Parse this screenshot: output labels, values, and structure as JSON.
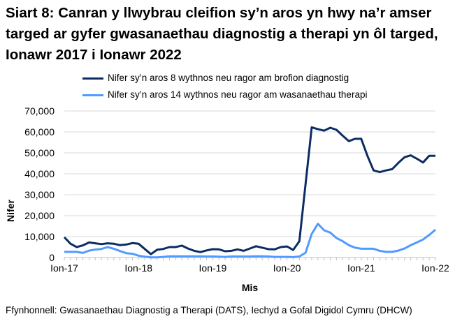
{
  "chart_data": {
    "type": "line",
    "title": "Siart 8: Canran y llwybrau cleifion sy’n aros yn hwy na’r amser targed ar gyfer gwasanaethau diagnostig a therapi yn ôl targed, Ionawr 2017 i Ionawr 2022",
    "xlabel": "Mis",
    "ylabel": "Nifer",
    "ylim": [
      0,
      70000
    ],
    "yticks": [
      "0",
      "10,000",
      "20,000",
      "30,000",
      "40,000",
      "50,000",
      "60,000",
      "70,000"
    ],
    "xtick_labels": [
      "Ion-17",
      "Ion-18",
      "Ion-19",
      "Ion-20",
      "Ion-21",
      "Ion-22"
    ],
    "x": [
      "2017-01",
      "2017-02",
      "2017-03",
      "2017-04",
      "2017-05",
      "2017-06",
      "2017-07",
      "2017-08",
      "2017-09",
      "2017-10",
      "2017-11",
      "2017-12",
      "2018-01",
      "2018-02",
      "2018-03",
      "2018-04",
      "2018-05",
      "2018-06",
      "2018-07",
      "2018-08",
      "2018-09",
      "2018-10",
      "2018-11",
      "2018-12",
      "2019-01",
      "2019-02",
      "2019-03",
      "2019-04",
      "2019-05",
      "2019-06",
      "2019-07",
      "2019-08",
      "2019-09",
      "2019-10",
      "2019-11",
      "2019-12",
      "2020-01",
      "2020-02",
      "2020-03",
      "2020-04",
      "2020-05",
      "2020-06",
      "2020-07",
      "2020-08",
      "2020-09",
      "2020-10",
      "2020-11",
      "2020-12",
      "2021-01",
      "2021-02",
      "2021-03",
      "2021-04",
      "2021-05",
      "2021-06",
      "2021-07",
      "2021-08",
      "2021-09",
      "2021-10",
      "2021-11",
      "2021-12",
      "2022-01"
    ],
    "grid": true,
    "legend_position": "top",
    "series": [
      {
        "name": "Nifer sy’n aros 8 wythnos neu ragor am brofion diagnostig",
        "color": "#0b2d63",
        "values": [
          9700,
          6600,
          5000,
          5800,
          7200,
          6800,
          6400,
          6800,
          6600,
          5900,
          6200,
          6900,
          6600,
          4100,
          1600,
          3700,
          4100,
          5000,
          5000,
          5700,
          4300,
          3200,
          2600,
          3400,
          4000,
          3900,
          3000,
          3200,
          3900,
          3200,
          4300,
          5400,
          4700,
          4000,
          3900,
          5000,
          5300,
          3600,
          7800,
          35000,
          62200,
          61300,
          60600,
          62000,
          61000,
          58200,
          55600,
          56700,
          56700,
          48600,
          41600,
          40800,
          41600,
          42200,
          45200,
          47900,
          48800,
          47200,
          45400,
          48600,
          48600
        ]
      },
      {
        "name": "Nifer sy’n aros 14 wythnos neu ragor am wasanaethau therapi",
        "color": "#4f9bff",
        "values": [
          2700,
          2700,
          2700,
          2200,
          3300,
          3800,
          4100,
          5000,
          4200,
          3100,
          2100,
          1800,
          900,
          400,
          100,
          100,
          300,
          600,
          600,
          600,
          600,
          600,
          600,
          500,
          500,
          400,
          300,
          500,
          500,
          500,
          500,
          600,
          600,
          500,
          300,
          300,
          300,
          200,
          500,
          2300,
          11300,
          16100,
          13000,
          11900,
          9300,
          7800,
          5900,
          4700,
          4200,
          4200,
          4200,
          3200,
          2700,
          2700,
          3300,
          4300,
          5900,
          7200,
          8600,
          10800,
          13300
        ]
      }
    ]
  },
  "source": "Ffynhonnell: Gwasanaethau Diagnostig a Therapi (DATS), Iechyd a Gofal Digidol Cymru (DHCW)"
}
